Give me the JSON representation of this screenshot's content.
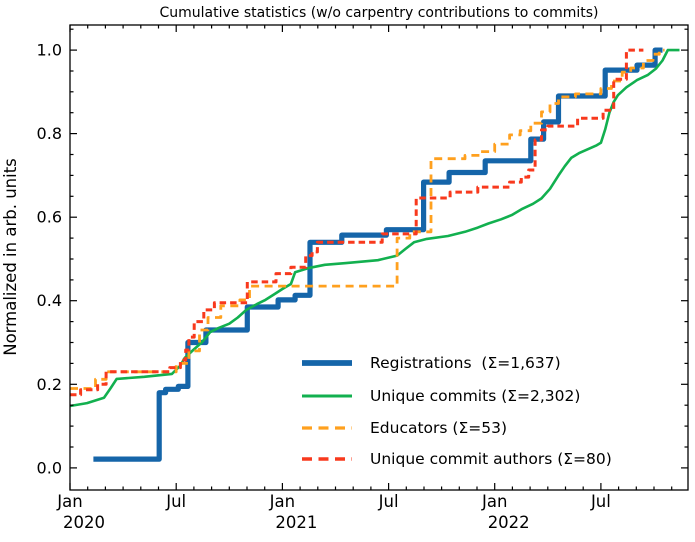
{
  "chart_data": {
    "type": "line",
    "title": "Cumulative statistics (w/o carpentry contributions to commits)",
    "ylabel": "Normalized in arb. units",
    "xlabel": "",
    "grid": false,
    "legend": {
      "frame": false,
      "location": "lower right"
    },
    "x_axis": {
      "kind": "date",
      "min": 2020.0,
      "max": 2022.91,
      "major_ticks": [
        {
          "pos": 2020.0,
          "month": "Jan",
          "year": "2020"
        },
        {
          "pos": 2020.5,
          "month": "Jul",
          "year": ""
        },
        {
          "pos": 2021.0,
          "month": "Jan",
          "year": "2021"
        },
        {
          "pos": 2021.5,
          "month": "Jul",
          "year": ""
        },
        {
          "pos": 2022.0,
          "month": "Jan",
          "year": "2022"
        },
        {
          "pos": 2022.5,
          "month": "Jul",
          "year": ""
        }
      ],
      "minor_tick_every_months": 1
    },
    "y_axis": {
      "min": -0.053,
      "max": 1.06,
      "major_ticks": [
        0.0,
        0.2,
        0.4,
        0.6,
        0.8,
        1.0
      ],
      "minor_tick_step": 0.05
    },
    "series": [
      {
        "name": "registrations",
        "label": "Registrations  (Σ=1,637)",
        "sigma_total": "1,637",
        "color": "#1565a9",
        "linestyle": "solid",
        "linewidth": 5.2,
        "interp": "step",
        "points": [
          [
            2020.11,
            0.021
          ],
          [
            2020.42,
            0.18
          ],
          [
            2020.45,
            0.188
          ],
          [
            2020.51,
            0.195
          ],
          [
            2020.555,
            0.3
          ],
          [
            2020.64,
            0.33
          ],
          [
            2020.835,
            0.385
          ],
          [
            2020.98,
            0.402
          ],
          [
            2021.06,
            0.413
          ],
          [
            2021.13,
            0.54
          ],
          [
            2021.28,
            0.557
          ],
          [
            2021.49,
            0.57
          ],
          [
            2021.665,
            0.684
          ],
          [
            2021.785,
            0.707
          ],
          [
            2021.955,
            0.735
          ],
          [
            2022.17,
            0.787
          ],
          [
            2022.23,
            0.828
          ],
          [
            2022.3,
            0.89
          ],
          [
            2022.52,
            0.952
          ],
          [
            2022.67,
            0.964
          ],
          [
            2022.755,
            1.0
          ],
          [
            2022.79,
            1.0
          ]
        ]
      },
      {
        "name": "unique_commits",
        "label": "Unique commits (Σ=2,302)",
        "sigma_total": "2,302",
        "color": "#12b04f",
        "linestyle": "solid",
        "linewidth": 2.6,
        "interp": "linear",
        "points": [
          [
            2020.0,
            0.148
          ],
          [
            2020.08,
            0.155
          ],
          [
            2020.16,
            0.168
          ],
          [
            2020.19,
            0.19
          ],
          [
            2020.22,
            0.213
          ],
          [
            2020.35,
            0.218
          ],
          [
            2020.48,
            0.225
          ],
          [
            2020.52,
            0.245
          ],
          [
            2020.54,
            0.263
          ],
          [
            2020.58,
            0.282
          ],
          [
            2020.62,
            0.3
          ],
          [
            2020.66,
            0.325
          ],
          [
            2020.7,
            0.335
          ],
          [
            2020.75,
            0.345
          ],
          [
            2020.79,
            0.36
          ],
          [
            2020.83,
            0.378
          ],
          [
            2020.88,
            0.392
          ],
          [
            2020.92,
            0.402
          ],
          [
            2020.96,
            0.415
          ],
          [
            2021.0,
            0.428
          ],
          [
            2021.04,
            0.44
          ],
          [
            2021.06,
            0.468
          ],
          [
            2021.12,
            0.478
          ],
          [
            2021.2,
            0.486
          ],
          [
            2021.3,
            0.49
          ],
          [
            2021.45,
            0.497
          ],
          [
            2021.54,
            0.508
          ],
          [
            2021.58,
            0.524
          ],
          [
            2021.62,
            0.54
          ],
          [
            2021.68,
            0.548
          ],
          [
            2021.78,
            0.555
          ],
          [
            2021.86,
            0.565
          ],
          [
            2021.92,
            0.575
          ],
          [
            2021.97,
            0.585
          ],
          [
            2022.03,
            0.595
          ],
          [
            2022.08,
            0.605
          ],
          [
            2022.13,
            0.62
          ],
          [
            2022.18,
            0.632
          ],
          [
            2022.22,
            0.645
          ],
          [
            2022.26,
            0.668
          ],
          [
            2022.3,
            0.7
          ],
          [
            2022.33,
            0.722
          ],
          [
            2022.36,
            0.742
          ],
          [
            2022.4,
            0.754
          ],
          [
            2022.44,
            0.763
          ],
          [
            2022.48,
            0.772
          ],
          [
            2022.5,
            0.778
          ],
          [
            2022.52,
            0.81
          ],
          [
            2022.54,
            0.85
          ],
          [
            2022.56,
            0.876
          ],
          [
            2022.58,
            0.892
          ],
          [
            2022.62,
            0.911
          ],
          [
            2022.67,
            0.928
          ],
          [
            2022.72,
            0.94
          ],
          [
            2022.76,
            0.956
          ],
          [
            2022.79,
            0.975
          ],
          [
            2022.815,
            1.0
          ],
          [
            2022.87,
            1.0
          ]
        ]
      },
      {
        "name": "educators",
        "label": "Educators (Σ=53)",
        "sigma_total": "53",
        "color": "#ffa01e",
        "linestyle": "dashed",
        "linewidth": 2.8,
        "interp": "step",
        "points": [
          [
            2020.0,
            0.19
          ],
          [
            2020.12,
            0.212
          ],
          [
            2020.17,
            0.23
          ],
          [
            2020.5,
            0.25
          ],
          [
            2020.56,
            0.28
          ],
          [
            2020.61,
            0.33
          ],
          [
            2020.65,
            0.36
          ],
          [
            2020.71,
            0.388
          ],
          [
            2020.8,
            0.402
          ],
          [
            2020.845,
            0.435
          ],
          [
            2021.54,
            0.55
          ],
          [
            2021.6,
            0.565
          ],
          [
            2021.7,
            0.74
          ],
          [
            2021.86,
            0.748
          ],
          [
            2021.93,
            0.757
          ],
          [
            2022.0,
            0.775
          ],
          [
            2022.07,
            0.797
          ],
          [
            2022.12,
            0.807
          ],
          [
            2022.17,
            0.825
          ],
          [
            2022.22,
            0.852
          ],
          [
            2022.26,
            0.872
          ],
          [
            2022.3,
            0.888
          ],
          [
            2022.38,
            0.895
          ],
          [
            2022.5,
            0.908
          ],
          [
            2022.55,
            0.926
          ],
          [
            2022.6,
            0.947
          ],
          [
            2022.64,
            0.957
          ],
          [
            2022.7,
            0.975
          ],
          [
            2022.745,
            0.99
          ],
          [
            2022.775,
            1.0
          ],
          [
            2022.8,
            1.0
          ]
        ]
      },
      {
        "name": "unique_commit_authors",
        "label": "Unique commit authors (Σ=80)",
        "sigma_total": "80",
        "color": "#f8391d",
        "linestyle": "dashed",
        "linewidth": 3.0,
        "interp": "step",
        "points": [
          [
            2020.0,
            0.175
          ],
          [
            2020.05,
            0.187
          ],
          [
            2020.13,
            0.2
          ],
          [
            2020.17,
            0.23
          ],
          [
            2020.47,
            0.24
          ],
          [
            2020.52,
            0.258
          ],
          [
            2020.545,
            0.282
          ],
          [
            2020.56,
            0.313
          ],
          [
            2020.585,
            0.35
          ],
          [
            2020.63,
            0.378
          ],
          [
            2020.68,
            0.395
          ],
          [
            2020.835,
            0.445
          ],
          [
            2020.97,
            0.465
          ],
          [
            2021.04,
            0.48
          ],
          [
            2021.11,
            0.508
          ],
          [
            2021.14,
            0.517
          ],
          [
            2021.165,
            0.54
          ],
          [
            2021.47,
            0.56
          ],
          [
            2021.63,
            0.646
          ],
          [
            2021.79,
            0.66
          ],
          [
            2021.92,
            0.672
          ],
          [
            2022.07,
            0.684
          ],
          [
            2022.125,
            0.696
          ],
          [
            2022.16,
            0.713
          ],
          [
            2022.19,
            0.785
          ],
          [
            2022.22,
            0.809
          ],
          [
            2022.25,
            0.818
          ],
          [
            2022.39,
            0.837
          ],
          [
            2022.51,
            0.856
          ],
          [
            2022.56,
            0.93
          ],
          [
            2022.62,
            1.0
          ],
          [
            2022.7,
            1.0
          ]
        ]
      }
    ]
  }
}
